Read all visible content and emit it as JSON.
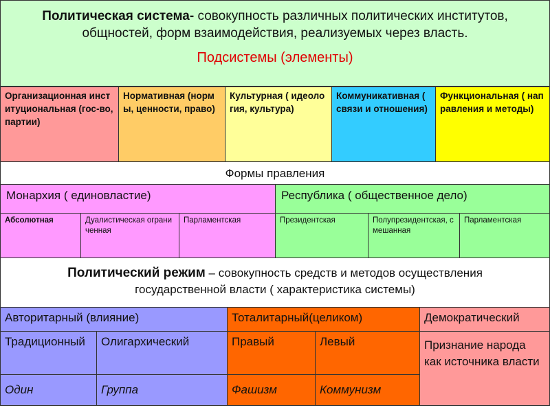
{
  "header": {
    "title_bold": "Политическая система-",
    "title_rest": "совокупность различных политических институтов, общностей, форм взаимодействия, реализуемых через власть.",
    "subtitle": "Подсистемы (элементы)"
  },
  "subsystems": [
    "Организационная институциональная (гос-во, партии)",
    "Нормативная (нормы, ценности, право)",
    "Культурная ( идеология, культура)",
    "Коммуникативная ( связи и отношения)",
    "Функциональная ( направления и методы)"
  ],
  "forms": {
    "heading": "Формы правления",
    "monarchy": "Монархия ( единовластие)",
    "republic": "Республика ( общественное дело)",
    "monarchy_types": [
      "Абсолютная",
      "Дуалистическая ограниченная",
      "Парламентская"
    ],
    "republic_types": [
      "Президентская",
      "Полупрезидентская, смешанная",
      "Парламентская"
    ]
  },
  "regime": {
    "title_bold": "Политический режим",
    "title_rest": "– совокупность средств и методов осуществления государственной власти ( характеристика системы)",
    "authoritarian": {
      "name": "Авторитарный (влияние)",
      "kinds": [
        "Традиционный",
        "Олигархический"
      ],
      "examples": [
        "Один",
        "Группа"
      ]
    },
    "totalitarian": {
      "name": "Тоталитарный(целиком)",
      "kinds": [
        "Правый",
        "Левый"
      ],
      "examples": [
        "Фашизм",
        "Коммунизм"
      ]
    },
    "democratic": {
      "name": "Демократический",
      "description": "Признание народа как источника власти"
    }
  }
}
